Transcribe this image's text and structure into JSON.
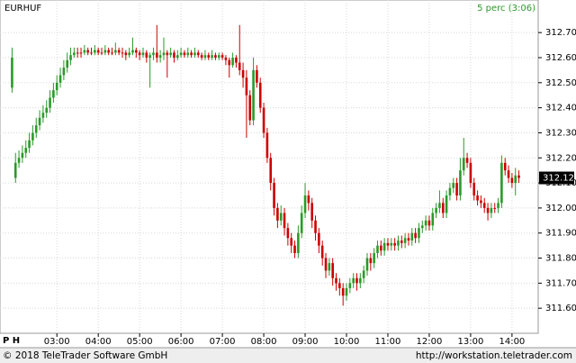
{
  "chart_data": {
    "type": "candlestick",
    "title": "EURHUF",
    "subtitle": "5 perc (3:06)",
    "period_label": "P H",
    "footer_left": "© 2018 TeleTrader Software GmbH",
    "footer_right": "http://workstation.teletrader.com",
    "up_color": "#2a9a2a",
    "down_color": "#cc0000",
    "grid": true,
    "last_label": {
      "value": 312.12,
      "label": "312.12"
    },
    "ylim": [
      311.5,
      312.83
    ],
    "yticks": [
      {
        "value": 311.6,
        "label": "311.60"
      },
      {
        "value": 311.7,
        "label": "311.70"
      },
      {
        "value": 311.8,
        "label": "311.80"
      },
      {
        "value": 311.9,
        "label": "311.90"
      },
      {
        "value": 312.0,
        "label": "312.00"
      },
      {
        "value": 312.1,
        "label": "312.10"
      },
      {
        "value": 312.2,
        "label": "312.20"
      },
      {
        "value": 312.3,
        "label": "312.30"
      },
      {
        "value": 312.4,
        "label": "312.40"
      },
      {
        "value": 312.5,
        "label": "312.50"
      },
      {
        "value": 312.6,
        "label": "312.60"
      },
      {
        "value": 312.7,
        "label": "312.70"
      }
    ],
    "xlim": [
      -3.5,
      152.6
    ],
    "xticks": [
      {
        "value": 13,
        "label": "03:00"
      },
      {
        "value": 25,
        "label": "04:00"
      },
      {
        "value": 37,
        "label": "05:00"
      },
      {
        "value": 49,
        "label": "06:00"
      },
      {
        "value": 61,
        "label": "07:00"
      },
      {
        "value": 73,
        "label": "08:00"
      },
      {
        "value": 85,
        "label": "09:00"
      },
      {
        "value": 97,
        "label": "10:00"
      },
      {
        "value": 109,
        "label": "11:00"
      },
      {
        "value": 121,
        "label": "12:00"
      },
      {
        "value": 133,
        "label": "13:00"
      },
      {
        "value": 145,
        "label": "14:00"
      }
    ],
    "ohlc": [
      [
        312.48,
        312.64,
        312.46,
        312.6
      ],
      [
        312.12,
        312.22,
        312.1,
        312.18
      ],
      [
        312.18,
        312.23,
        312.16,
        312.2
      ],
      [
        312.2,
        312.25,
        312.18,
        312.22
      ],
      [
        312.22,
        312.27,
        312.2,
        312.24
      ],
      [
        312.24,
        312.3,
        312.22,
        312.27
      ],
      [
        312.27,
        312.33,
        312.25,
        312.3
      ],
      [
        312.3,
        312.36,
        312.28,
        312.33
      ],
      [
        312.33,
        312.39,
        312.31,
        312.36
      ],
      [
        312.36,
        312.41,
        312.34,
        312.38
      ],
      [
        312.38,
        312.43,
        312.36,
        312.4
      ],
      [
        312.4,
        312.47,
        312.38,
        312.44
      ],
      [
        312.44,
        312.5,
        312.42,
        312.47
      ],
      [
        312.47,
        312.53,
        312.45,
        312.5
      ],
      [
        312.5,
        312.56,
        312.48,
        312.53
      ],
      [
        312.53,
        312.59,
        312.51,
        312.56
      ],
      [
        312.56,
        312.62,
        312.54,
        312.59
      ],
      [
        312.59,
        312.64,
        312.57,
        312.61
      ],
      [
        312.61,
        312.64,
        312.6,
        312.62
      ],
      [
        312.62,
        312.64,
        312.6,
        312.62
      ],
      [
        312.62,
        312.64,
        312.6,
        312.62
      ],
      [
        312.62,
        312.65,
        312.61,
        312.63
      ],
      [
        312.63,
        312.64,
        312.61,
        312.62
      ],
      [
        312.62,
        312.64,
        312.61,
        312.62
      ],
      [
        312.62,
        312.65,
        312.61,
        312.63
      ],
      [
        312.63,
        312.64,
        312.61,
        312.62
      ],
      [
        312.62,
        312.64,
        312.61,
        312.62
      ],
      [
        312.62,
        312.65,
        312.61,
        312.63
      ],
      [
        312.63,
        312.64,
        312.61,
        312.62
      ],
      [
        312.62,
        312.64,
        312.61,
        312.62
      ],
      [
        312.62,
        312.66,
        312.61,
        312.63
      ],
      [
        312.63,
        312.64,
        312.61,
        312.62
      ],
      [
        312.62,
        312.64,
        312.6,
        312.62
      ],
      [
        312.62,
        312.63,
        312.59,
        312.61
      ],
      [
        312.61,
        312.64,
        312.6,
        312.62
      ],
      [
        312.62,
        312.68,
        312.61,
        312.63
      ],
      [
        312.63,
        312.64,
        312.6,
        312.62
      ],
      [
        312.62,
        312.63,
        312.59,
        312.61
      ],
      [
        312.61,
        312.64,
        312.6,
        312.62
      ],
      [
        312.62,
        312.63,
        312.58,
        312.6
      ],
      [
        312.6,
        312.62,
        312.48,
        312.61
      ],
      [
        312.61,
        312.64,
        312.59,
        312.62
      ],
      [
        312.62,
        312.73,
        312.58,
        312.6
      ],
      [
        312.6,
        312.63,
        312.58,
        312.61
      ],
      [
        312.61,
        312.68,
        312.59,
        312.62
      ],
      [
        312.62,
        312.63,
        312.52,
        312.61
      ],
      [
        312.61,
        312.64,
        312.6,
        312.62
      ],
      [
        312.62,
        312.63,
        312.58,
        312.6
      ],
      [
        312.6,
        312.63,
        312.59,
        312.61
      ],
      [
        312.61,
        312.64,
        312.6,
        312.62
      ],
      [
        312.62,
        312.63,
        312.6,
        312.61
      ],
      [
        312.61,
        312.64,
        312.6,
        312.62
      ],
      [
        312.62,
        312.63,
        312.6,
        312.61
      ],
      [
        312.61,
        312.64,
        312.6,
        312.62
      ],
      [
        312.62,
        312.63,
        312.6,
        312.61
      ],
      [
        312.61,
        312.62,
        312.59,
        312.6
      ],
      [
        312.6,
        312.63,
        312.59,
        312.61
      ],
      [
        312.61,
        312.62,
        312.59,
        312.6
      ],
      [
        312.6,
        312.63,
        312.59,
        312.61
      ],
      [
        312.61,
        312.62,
        312.59,
        312.6
      ],
      [
        312.6,
        312.62,
        312.59,
        312.61
      ],
      [
        312.61,
        312.62,
        312.59,
        312.6
      ],
      [
        312.6,
        312.61,
        312.57,
        312.59
      ],
      [
        312.59,
        312.6,
        312.52,
        312.57
      ],
      [
        312.57,
        312.62,
        312.56,
        312.6
      ],
      [
        312.6,
        312.61,
        312.56,
        312.58
      ],
      [
        312.58,
        312.73,
        312.53,
        312.55
      ],
      [
        312.55,
        312.58,
        312.48,
        312.52
      ],
      [
        312.52,
        312.55,
        312.28,
        312.45
      ],
      [
        312.45,
        312.47,
        312.33,
        312.35
      ],
      [
        312.35,
        312.6,
        312.33,
        312.55
      ],
      [
        312.55,
        312.57,
        312.48,
        312.5
      ],
      [
        312.5,
        312.52,
        312.38,
        312.4
      ],
      [
        312.4,
        312.42,
        312.28,
        312.3
      ],
      [
        312.3,
        312.32,
        312.18,
        312.2
      ],
      [
        312.2,
        312.22,
        312.07,
        312.1
      ],
      [
        312.1,
        312.12,
        311.97,
        312.0
      ],
      [
        312.0,
        312.02,
        311.92,
        311.95
      ],
      [
        311.95,
        312.01,
        311.93,
        311.98
      ],
      [
        311.98,
        312.0,
        311.89,
        311.92
      ],
      [
        311.92,
        311.94,
        311.85,
        311.88
      ],
      [
        311.88,
        311.9,
        311.82,
        311.85
      ],
      [
        311.85,
        311.87,
        311.8,
        311.82
      ],
      [
        311.82,
        311.93,
        311.8,
        311.9
      ],
      [
        311.9,
        312.01,
        311.88,
        311.98
      ],
      [
        311.98,
        312.1,
        311.96,
        312.05
      ],
      [
        312.05,
        312.07,
        311.99,
        312.02
      ],
      [
        312.02,
        312.04,
        311.92,
        311.95
      ],
      [
        311.95,
        311.97,
        311.87,
        311.9
      ],
      [
        311.9,
        311.92,
        311.82,
        311.85
      ],
      [
        311.85,
        311.87,
        311.77,
        311.8
      ],
      [
        311.8,
        311.82,
        311.72,
        311.75
      ],
      [
        311.75,
        311.8,
        311.73,
        311.78
      ],
      [
        311.78,
        311.8,
        311.69,
        311.72
      ],
      [
        311.72,
        311.74,
        311.67,
        311.7
      ],
      [
        311.7,
        311.72,
        311.65,
        311.68
      ],
      [
        311.68,
        311.7,
        311.61,
        311.65
      ],
      [
        311.65,
        311.7,
        311.63,
        311.68
      ],
      [
        311.68,
        311.72,
        311.66,
        311.7
      ],
      [
        311.7,
        311.74,
        311.68,
        311.72
      ],
      [
        311.72,
        311.74,
        311.67,
        311.7
      ],
      [
        311.7,
        311.74,
        311.68,
        311.72
      ],
      [
        311.72,
        311.77,
        311.7,
        311.75
      ],
      [
        311.75,
        311.82,
        311.73,
        311.8
      ],
      [
        311.8,
        311.82,
        311.75,
        311.78
      ],
      [
        311.78,
        311.84,
        311.76,
        311.82
      ],
      [
        311.82,
        311.87,
        311.8,
        311.85
      ],
      [
        311.85,
        311.87,
        311.81,
        311.83
      ],
      [
        311.83,
        311.88,
        311.81,
        311.86
      ],
      [
        311.86,
        311.88,
        311.83,
        311.85
      ],
      [
        311.85,
        311.88,
        311.83,
        311.86
      ],
      [
        311.86,
        311.88,
        311.83,
        311.85
      ],
      [
        311.85,
        311.89,
        311.83,
        311.87
      ],
      [
        311.87,
        311.89,
        311.84,
        311.86
      ],
      [
        311.86,
        311.9,
        311.84,
        311.88
      ],
      [
        311.88,
        311.9,
        311.85,
        311.87
      ],
      [
        311.87,
        311.92,
        311.85,
        311.9
      ],
      [
        311.9,
        311.92,
        311.86,
        311.88
      ],
      [
        311.88,
        311.94,
        311.86,
        311.92
      ],
      [
        311.92,
        311.95,
        311.9,
        311.93
      ],
      [
        311.93,
        311.97,
        311.91,
        311.95
      ],
      [
        311.95,
        311.97,
        311.91,
        311.93
      ],
      [
        311.93,
        312.0,
        311.91,
        311.98
      ],
      [
        311.98,
        312.02,
        311.96,
        312.0
      ],
      [
        312.0,
        312.07,
        311.98,
        312.02
      ],
      [
        312.02,
        312.04,
        311.96,
        311.98
      ],
      [
        311.98,
        312.07,
        311.96,
        312.05
      ],
      [
        312.05,
        312.1,
        312.03,
        312.08
      ],
      [
        312.08,
        312.12,
        312.06,
        312.1
      ],
      [
        312.1,
        312.12,
        312.03,
        312.05
      ],
      [
        312.05,
        312.2,
        312.03,
        312.15
      ],
      [
        312.15,
        312.28,
        312.13,
        312.2
      ],
      [
        312.2,
        312.22,
        312.16,
        312.18
      ],
      [
        312.18,
        312.2,
        312.08,
        312.1
      ],
      [
        312.1,
        312.12,
        312.03,
        312.05
      ],
      [
        312.05,
        312.07,
        312.01,
        312.03
      ],
      [
        312.03,
        312.05,
        312.0,
        312.02
      ],
      [
        312.02,
        312.04,
        311.98,
        312.0
      ],
      [
        312.0,
        312.02,
        311.95,
        311.98
      ],
      [
        311.98,
        312.02,
        311.96,
        312.0
      ],
      [
        312.0,
        312.02,
        311.98,
        312.0
      ],
      [
        312.0,
        312.04,
        311.98,
        312.02
      ],
      [
        312.02,
        312.21,
        312.0,
        312.18
      ],
      [
        312.18,
        312.2,
        312.13,
        312.15
      ],
      [
        312.15,
        312.17,
        312.1,
        312.12
      ],
      [
        312.12,
        312.14,
        312.08,
        312.1
      ],
      [
        312.1,
        312.16,
        312.05,
        312.13
      ],
      [
        312.13,
        312.15,
        312.1,
        312.12
      ]
    ]
  }
}
